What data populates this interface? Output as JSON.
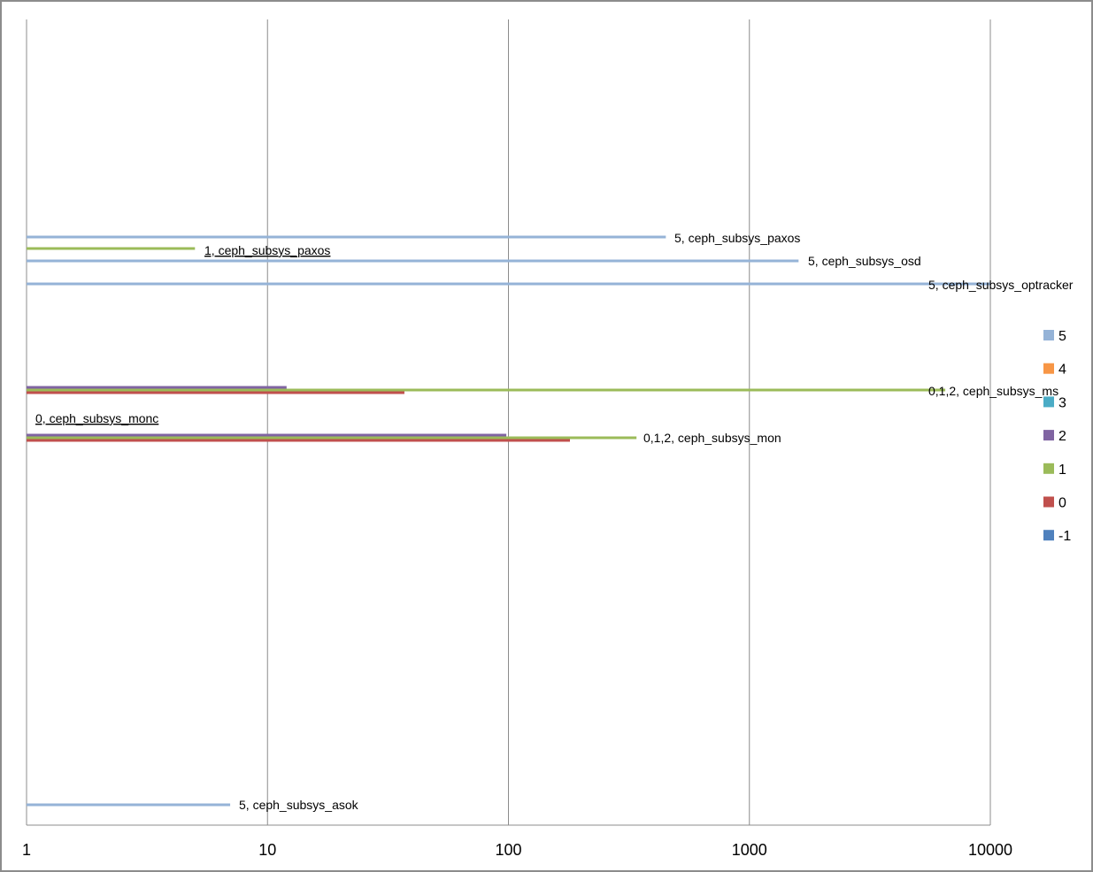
{
  "chart_data": {
    "type": "bar",
    "orientation": "horizontal",
    "x_scale": "log",
    "xlim": [
      1,
      10000
    ],
    "x_ticks": [
      "1",
      "10",
      "100",
      "1000",
      "10000"
    ],
    "grid": "vertical",
    "legend_position": "right",
    "series": [
      {
        "name": "5",
        "color": "#95b3d7"
      },
      {
        "name": "4",
        "color": "#f79646"
      },
      {
        "name": "3",
        "color": "#4bacc6"
      },
      {
        "name": "2",
        "color": "#8064a2"
      },
      {
        "name": "1",
        "color": "#9bbb59"
      },
      {
        "name": "0",
        "color": "#c0504d"
      },
      {
        "name": "-1",
        "color": "#4f81bd"
      }
    ],
    "bars": [
      {
        "label": "5, ceph_subsys_paxos",
        "series": "5",
        "value": 450
      },
      {
        "label": "1, ceph_subsys_paxos",
        "series": "1",
        "value": 5,
        "underline": true
      },
      {
        "label": "5, ceph_subsys_osd",
        "series": "5",
        "value": 1600
      },
      {
        "label": "5, ceph_subsys_optracker",
        "series": "5",
        "value": 10000
      },
      {
        "label": "",
        "series": "2",
        "value": 12
      },
      {
        "label": "0,1,2, ceph_subsys_ms",
        "series": "1",
        "value": 6500
      },
      {
        "label": "",
        "series": "0",
        "value": 37
      },
      {
        "label": "0, ceph_subsys_monc",
        "series": "0",
        "value": 1,
        "underline": true
      },
      {
        "label": "",
        "series": "2",
        "value": 98
      },
      {
        "label": "0,1,2, ceph_subsys_mon",
        "series": "1",
        "value": 340
      },
      {
        "label": "",
        "series": "0",
        "value": 180
      },
      {
        "label": "5, ceph_subsys_asok",
        "series": "5",
        "value": 7
      }
    ]
  }
}
